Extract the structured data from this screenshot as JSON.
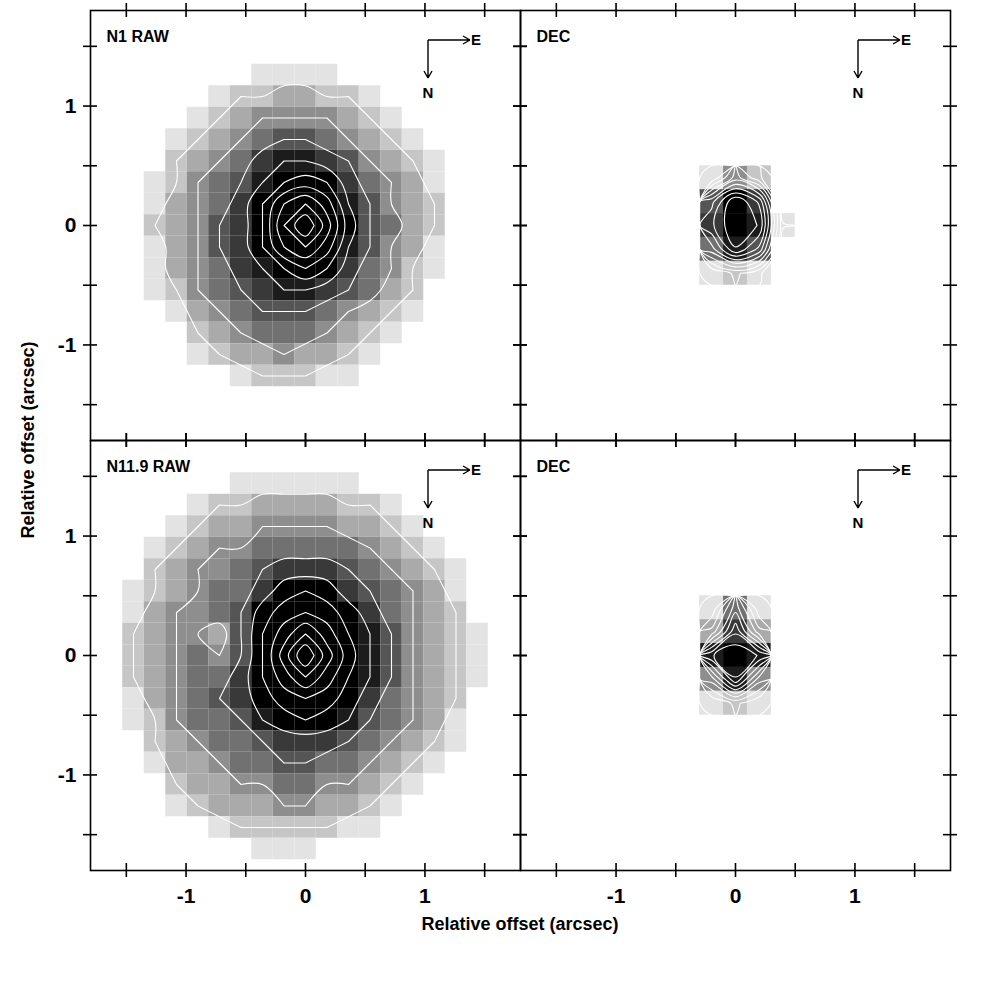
{
  "chart_data": {
    "type": "heatmap",
    "x_label": "Relative offset (arcsec)",
    "y_label": "Relative offset (arcsec)",
    "xlim": [
      -1.8,
      1.8
    ],
    "ylim": [
      -1.8,
      1.8
    ],
    "xticks": [
      -1,
      0,
      1
    ],
    "yticks": [
      -1,
      0,
      1
    ],
    "panels": [
      {
        "title": "N1 RAW",
        "compass": {
          "east": "E",
          "north": "N"
        },
        "intensity_range": [
          0,
          9
        ],
        "x": [
          -1.44,
          -1.26,
          -1.08,
          -0.9,
          -0.72,
          -0.54,
          -0.36,
          -0.18,
          0,
          0.18,
          0.36,
          0.54,
          0.72,
          0.9,
          1.08,
          1.26,
          1.44
        ],
        "y": [
          1.44,
          1.26,
          1.08,
          0.9,
          0.72,
          0.54,
          0.36,
          0.18,
          0,
          -0.18,
          -0.36,
          -0.54,
          -0.72,
          -0.9,
          -1.08,
          -1.26,
          -1.44
        ],
        "cells": [
          [
            0,
            0,
            0,
            0,
            0,
            0,
            0,
            0,
            0,
            0,
            0,
            0,
            0,
            0,
            0,
            0,
            0
          ],
          [
            0,
            0,
            0,
            0,
            0,
            0,
            1,
            1,
            1,
            1,
            0,
            0,
            0,
            0,
            0,
            0,
            0
          ],
          [
            0,
            0,
            0,
            0,
            1,
            2,
            2,
            3,
            3,
            2,
            2,
            1,
            0,
            0,
            0,
            0,
            0
          ],
          [
            0,
            0,
            0,
            1,
            2,
            3,
            4,
            4,
            4,
            4,
            3,
            2,
            1,
            0,
            0,
            0,
            0
          ],
          [
            0,
            0,
            1,
            2,
            3,
            4,
            5,
            6,
            6,
            5,
            4,
            3,
            2,
            1,
            0,
            0,
            0
          ],
          [
            0,
            0,
            2,
            3,
            4,
            5,
            7,
            8,
            8,
            7,
            6,
            4,
            3,
            2,
            1,
            0,
            0
          ],
          [
            0,
            1,
            2,
            4,
            5,
            6,
            8,
            10,
            11,
            10,
            7,
            5,
            4,
            3,
            1,
            0,
            0
          ],
          [
            0,
            1,
            3,
            4,
            5,
            7,
            10,
            14,
            16,
            13,
            8,
            6,
            4,
            3,
            2,
            0,
            0
          ],
          [
            0,
            2,
            3,
            4,
            6,
            7,
            10,
            16,
            20,
            15,
            9,
            6,
            5,
            3,
            2,
            0,
            0
          ],
          [
            0,
            1,
            3,
            4,
            6,
            7,
            10,
            14,
            16,
            13,
            8,
            6,
            4,
            3,
            1,
            0,
            0
          ],
          [
            0,
            1,
            3,
            4,
            5,
            7,
            8,
            10,
            12,
            10,
            7,
            5,
            4,
            2,
            1,
            0,
            0
          ],
          [
            0,
            1,
            2,
            4,
            5,
            6,
            7,
            8,
            8,
            7,
            6,
            5,
            3,
            2,
            0,
            0,
            0
          ],
          [
            0,
            0,
            1,
            3,
            4,
            5,
            6,
            6,
            6,
            5,
            4,
            3,
            2,
            1,
            0,
            0,
            0
          ],
          [
            0,
            0,
            0,
            2,
            3,
            4,
            5,
            5,
            5,
            4,
            3,
            2,
            1,
            0,
            0,
            0,
            0
          ],
          [
            0,
            0,
            0,
            1,
            2,
            3,
            3,
            4,
            3,
            3,
            2,
            1,
            0,
            0,
            0,
            0,
            0
          ],
          [
            0,
            0,
            0,
            0,
            0,
            1,
            2,
            2,
            2,
            1,
            1,
            0,
            0,
            0,
            0,
            0,
            0
          ],
          [
            0,
            0,
            0,
            0,
            0,
            0,
            0,
            0,
            0,
            0,
            0,
            0,
            0,
            0,
            0,
            0,
            0
          ]
        ]
      },
      {
        "title": "DEC",
        "compass": {
          "east": "E",
          "north": "N"
        },
        "intensity_range": [
          0,
          9
        ],
        "x": [
          -0.2,
          0,
          0.2,
          0.4
        ],
        "y": [
          0.4,
          0.2,
          0,
          -0.2,
          -0.4
        ],
        "cells": [
          [
            1,
            4,
            2,
            0
          ],
          [
            6,
            9,
            7,
            0
          ],
          [
            7,
            9,
            8,
            1
          ],
          [
            5,
            8,
            6,
            0
          ],
          [
            1,
            2,
            1,
            0
          ]
        ]
      },
      {
        "title": "N11.9 RAW",
        "compass": {
          "east": "E",
          "north": "N"
        },
        "intensity_range": [
          0,
          9
        ],
        "x": [
          -1.62,
          -1.44,
          -1.26,
          -1.08,
          -0.9,
          -0.72,
          -0.54,
          -0.36,
          -0.18,
          0,
          0.18,
          0.36,
          0.54,
          0.72,
          0.9,
          1.08,
          1.26,
          1.44,
          1.62
        ],
        "y": [
          1.62,
          1.44,
          1.26,
          1.08,
          0.9,
          0.72,
          0.54,
          0.36,
          0.18,
          0,
          -0.18,
          -0.36,
          -0.54,
          -0.72,
          -0.9,
          -1.08,
          -1.26,
          -1.44,
          -1.62
        ],
        "cells": [
          [
            0,
            0,
            0,
            0,
            0,
            0,
            0,
            0,
            0,
            0,
            0,
            0,
            0,
            0,
            0,
            0,
            0,
            0,
            0
          ],
          [
            0,
            0,
            0,
            0,
            0,
            0,
            1,
            1,
            1,
            1,
            1,
            1,
            0,
            0,
            0,
            0,
            0,
            0,
            0
          ],
          [
            0,
            0,
            0,
            0,
            1,
            2,
            2,
            3,
            3,
            3,
            3,
            2,
            2,
            1,
            0,
            0,
            0,
            0,
            0
          ],
          [
            0,
            0,
            0,
            1,
            2,
            3,
            3,
            4,
            4,
            4,
            4,
            3,
            3,
            2,
            1,
            0,
            0,
            0,
            0
          ],
          [
            0,
            0,
            1,
            2,
            3,
            4,
            4,
            5,
            5,
            5,
            5,
            5,
            4,
            3,
            2,
            1,
            0,
            0,
            0
          ],
          [
            0,
            0,
            2,
            3,
            4,
            4,
            5,
            6,
            7,
            7,
            7,
            6,
            5,
            4,
            3,
            2,
            1,
            0,
            0
          ],
          [
            0,
            1,
            2,
            3,
            4,
            5,
            5,
            7,
            9,
            10,
            9,
            7,
            6,
            5,
            4,
            3,
            1,
            0,
            0
          ],
          [
            0,
            1,
            3,
            4,
            4,
            5,
            6,
            9,
            11,
            12,
            11,
            9,
            7,
            5,
            4,
            3,
            2,
            0,
            0
          ],
          [
            0,
            2,
            3,
            4,
            4,
            3,
            6,
            10,
            13,
            16,
            13,
            10,
            8,
            6,
            4,
            3,
            2,
            1,
            0
          ],
          [
            0,
            2,
            3,
            4,
            5,
            4,
            6,
            10,
            15,
            20,
            15,
            11,
            8,
            6,
            4,
            3,
            2,
            1,
            0
          ],
          [
            0,
            2,
            3,
            4,
            5,
            5,
            7,
            10,
            13,
            16,
            13,
            10,
            8,
            6,
            4,
            3,
            2,
            1,
            0
          ],
          [
            0,
            1,
            3,
            4,
            5,
            6,
            7,
            9,
            11,
            12,
            11,
            9,
            7,
            5,
            4,
            3,
            2,
            0,
            0
          ],
          [
            0,
            1,
            2,
            4,
            5,
            5,
            6,
            8,
            9,
            10,
            9,
            8,
            6,
            5,
            4,
            3,
            1,
            0,
            0
          ],
          [
            0,
            0,
            2,
            3,
            4,
            5,
            5,
            6,
            7,
            7,
            7,
            6,
            5,
            4,
            3,
            2,
            1,
            0,
            0
          ],
          [
            0,
            0,
            1,
            3,
            3,
            4,
            5,
            5,
            6,
            6,
            5,
            5,
            4,
            3,
            2,
            1,
            0,
            0,
            0
          ],
          [
            0,
            0,
            0,
            2,
            3,
            3,
            4,
            4,
            5,
            5,
            4,
            4,
            3,
            2,
            1,
            0,
            0,
            0,
            0
          ],
          [
            0,
            0,
            0,
            1,
            2,
            3,
            3,
            3,
            4,
            4,
            3,
            3,
            2,
            1,
            0,
            0,
            0,
            0,
            0
          ],
          [
            0,
            0,
            0,
            0,
            0,
            1,
            2,
            2,
            2,
            2,
            2,
            1,
            1,
            0,
            0,
            0,
            0,
            0,
            0
          ],
          [
            0,
            0,
            0,
            0,
            0,
            0,
            0,
            1,
            1,
            1,
            0,
            0,
            0,
            0,
            0,
            0,
            0,
            0,
            0
          ]
        ]
      },
      {
        "title": "DEC",
        "compass": {
          "east": "E",
          "north": "N"
        },
        "intensity_range": [
          0,
          9
        ],
        "x": [
          -0.2,
          0,
          0.2
        ],
        "y": [
          0.4,
          0.2,
          0,
          -0.2,
          -0.4
        ],
        "cells": [
          [
            1,
            5,
            1
          ],
          [
            3,
            7,
            3
          ],
          [
            8,
            9,
            8
          ],
          [
            4,
            8,
            4
          ],
          [
            1,
            2,
            1
          ]
        ]
      }
    ]
  }
}
